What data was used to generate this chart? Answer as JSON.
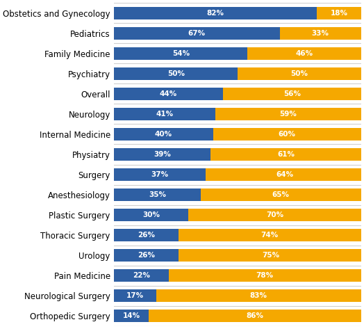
{
  "categories": [
    "Orthopedic Surgery",
    "Neurological Surgery",
    "Pain Medicine",
    "Urology",
    "Thoracic Surgery",
    "Plastic Surgery",
    "Anesthesiology",
    "Surgery",
    "Physiatry",
    "Internal Medicine",
    "Neurology",
    "Overall",
    "Psychiatry",
    "Family Medicine",
    "Pediatrics",
    "Obstetics and Gynecology"
  ],
  "female_pct": [
    14,
    17,
    22,
    26,
    26,
    30,
    35,
    37,
    39,
    40,
    41,
    44,
    50,
    54,
    67,
    82
  ],
  "male_pct": [
    86,
    83,
    78,
    75,
    74,
    70,
    65,
    64,
    61,
    60,
    59,
    56,
    50,
    46,
    33,
    18
  ],
  "female_color": "#2e5fa3",
  "male_color": "#f5a800",
  "bar_height": 0.62,
  "label_fontsize": 7.5,
  "tick_fontsize": 8.5,
  "label_color": "#ffffff",
  "bg_color": "#ffffff",
  "separator_color": "#d0d0d0",
  "separator_linewidth": 0.8
}
